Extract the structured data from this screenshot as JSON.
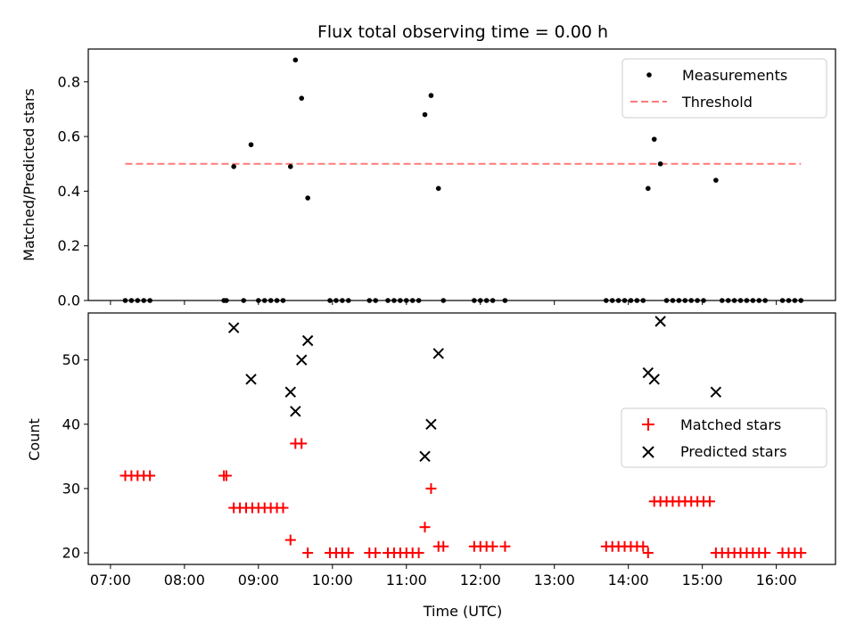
{
  "chart_data": [
    {
      "type": "scatter",
      "title": "Flux total observing time = 0.00 h",
      "ylabel": "Matched/Predicted stars",
      "ylim": [
        0,
        0.92
      ],
      "yticks": [
        0.0,
        0.2,
        0.4,
        0.6,
        0.8
      ],
      "ytick_labels": [
        "0.0",
        "0.2",
        "0.4",
        "0.6",
        "0.8"
      ],
      "grid": false,
      "legend_position": "top-right",
      "series": [
        {
          "name": "Measurements",
          "color": "#000000",
          "marker": "dot",
          "points": [
            [
              "07:12",
              0
            ],
            [
              "07:17",
              0
            ],
            [
              "07:22",
              0
            ],
            [
              "07:27",
              0
            ],
            [
              "07:32",
              0
            ],
            [
              "08:32",
              0
            ],
            [
              "08:34",
              0
            ],
            [
              "08:40",
              0.49
            ],
            [
              "08:48",
              0
            ],
            [
              "08:54",
              0.57
            ],
            [
              "09:00",
              0
            ],
            [
              "09:05",
              0
            ],
            [
              "09:10",
              0
            ],
            [
              "09:15",
              0
            ],
            [
              "09:20",
              0
            ],
            [
              "09:26",
              0.49
            ],
            [
              "09:30",
              0.88
            ],
            [
              "09:35",
              0.74
            ],
            [
              "09:40",
              0.375
            ],
            [
              "09:58",
              0
            ],
            [
              "10:03",
              0
            ],
            [
              "10:08",
              0
            ],
            [
              "10:13",
              0
            ],
            [
              "10:30",
              0
            ],
            [
              "10:35",
              0
            ],
            [
              "10:45",
              0
            ],
            [
              "10:50",
              0
            ],
            [
              "10:55",
              0
            ],
            [
              "11:00",
              0
            ],
            [
              "11:05",
              0
            ],
            [
              "11:10",
              0
            ],
            [
              "11:15",
              0.68
            ],
            [
              "11:20",
              0.75
            ],
            [
              "11:26",
              0.41
            ],
            [
              "11:30",
              0
            ],
            [
              "11:55",
              0
            ],
            [
              "12:00",
              0
            ],
            [
              "12:05",
              0
            ],
            [
              "12:10",
              0
            ],
            [
              "12:20",
              0
            ],
            [
              "13:42",
              0
            ],
            [
              "13:47",
              0
            ],
            [
              "13:52",
              0
            ],
            [
              "13:57",
              0
            ],
            [
              "14:02",
              0
            ],
            [
              "14:07",
              0
            ],
            [
              "14:12",
              0
            ],
            [
              "14:16",
              0.41
            ],
            [
              "14:21",
              0.59
            ],
            [
              "14:26",
              0.5
            ],
            [
              "14:31",
              0
            ],
            [
              "14:36",
              0
            ],
            [
              "14:41",
              0
            ],
            [
              "14:46",
              0
            ],
            [
              "14:51",
              0
            ],
            [
              "14:56",
              0
            ],
            [
              "15:01",
              0
            ],
            [
              "15:11",
              0.44
            ],
            [
              "15:16",
              0
            ],
            [
              "15:21",
              0
            ],
            [
              "15:26",
              0
            ],
            [
              "15:31",
              0
            ],
            [
              "15:36",
              0
            ],
            [
              "15:41",
              0
            ],
            [
              "15:46",
              0
            ],
            [
              "15:51",
              0
            ],
            [
              "16:05",
              0
            ],
            [
              "16:10",
              0
            ],
            [
              "16:15",
              0
            ],
            [
              "16:20",
              0
            ]
          ]
        },
        {
          "name": "Threshold",
          "color": "#ff7a7a",
          "style": "dashed",
          "points": [
            [
              "07:12",
              0.5
            ],
            [
              "16:20",
              0.5
            ]
          ]
        }
      ]
    },
    {
      "type": "scatter",
      "xlabel": "Time (UTC)",
      "ylabel": "Count",
      "xlim": [
        "06:42",
        "16:48"
      ],
      "ylim": [
        18.2,
        57.3
      ],
      "xticks": [
        "07:00",
        "08:00",
        "09:00",
        "10:00",
        "11:00",
        "12:00",
        "13:00",
        "14:00",
        "15:00",
        "16:00"
      ],
      "yticks": [
        20,
        30,
        40,
        50
      ],
      "ytick_labels": [
        "20",
        "30",
        "40",
        "50"
      ],
      "grid": false,
      "legend_position": "center-right",
      "series": [
        {
          "name": "Matched stars",
          "color": "#ff0000",
          "marker": "plus",
          "points": [
            [
              "07:12",
              32
            ],
            [
              "07:17",
              32
            ],
            [
              "07:22",
              32
            ],
            [
              "07:27",
              32
            ],
            [
              "07:32",
              32
            ],
            [
              "08:32",
              32
            ],
            [
              "08:34",
              32
            ],
            [
              "08:40",
              27
            ],
            [
              "08:45",
              27
            ],
            [
              "08:50",
              27
            ],
            [
              "08:55",
              27
            ],
            [
              "09:00",
              27
            ],
            [
              "09:05",
              27
            ],
            [
              "09:10",
              27
            ],
            [
              "09:15",
              27
            ],
            [
              "09:20",
              27
            ],
            [
              "09:26",
              22
            ],
            [
              "09:30",
              37
            ],
            [
              "09:35",
              37
            ],
            [
              "09:40",
              20
            ],
            [
              "09:58",
              20
            ],
            [
              "10:03",
              20
            ],
            [
              "10:08",
              20
            ],
            [
              "10:13",
              20
            ],
            [
              "10:30",
              20
            ],
            [
              "10:35",
              20
            ],
            [
              "10:45",
              20
            ],
            [
              "10:50",
              20
            ],
            [
              "10:55",
              20
            ],
            [
              "11:00",
              20
            ],
            [
              "11:05",
              20
            ],
            [
              "11:10",
              20
            ],
            [
              "11:15",
              24
            ],
            [
              "11:20",
              30
            ],
            [
              "11:26",
              21
            ],
            [
              "11:30",
              21
            ],
            [
              "11:55",
              21
            ],
            [
              "12:00",
              21
            ],
            [
              "12:05",
              21
            ],
            [
              "12:10",
              21
            ],
            [
              "12:20",
              21
            ],
            [
              "13:42",
              21
            ],
            [
              "13:47",
              21
            ],
            [
              "13:52",
              21
            ],
            [
              "13:57",
              21
            ],
            [
              "14:02",
              21
            ],
            [
              "14:07",
              21
            ],
            [
              "14:12",
              21
            ],
            [
              "14:16",
              20
            ],
            [
              "14:21",
              28
            ],
            [
              "14:26",
              28
            ],
            [
              "14:31",
              28
            ],
            [
              "14:36",
              28
            ],
            [
              "14:41",
              28
            ],
            [
              "14:46",
              28
            ],
            [
              "14:51",
              28
            ],
            [
              "14:56",
              28
            ],
            [
              "15:01",
              28
            ],
            [
              "15:06",
              28
            ],
            [
              "15:11",
              20
            ],
            [
              "15:16",
              20
            ],
            [
              "15:21",
              20
            ],
            [
              "15:26",
              20
            ],
            [
              "15:31",
              20
            ],
            [
              "15:36",
              20
            ],
            [
              "15:41",
              20
            ],
            [
              "15:46",
              20
            ],
            [
              "15:51",
              20
            ],
            [
              "16:05",
              20
            ],
            [
              "16:10",
              20
            ],
            [
              "16:15",
              20
            ],
            [
              "16:20",
              20
            ]
          ]
        },
        {
          "name": "Predicted stars",
          "color": "#000000",
          "marker": "x",
          "points": [
            [
              "08:40",
              55
            ],
            [
              "08:54",
              47
            ],
            [
              "09:26",
              45
            ],
            [
              "09:30",
              42
            ],
            [
              "09:35",
              50
            ],
            [
              "09:40",
              53
            ],
            [
              "11:15",
              35
            ],
            [
              "11:20",
              40
            ],
            [
              "11:26",
              51
            ],
            [
              "14:16",
              48
            ],
            [
              "14:21",
              47
            ],
            [
              "14:26",
              56
            ],
            [
              "15:11",
              45
            ]
          ]
        }
      ]
    }
  ]
}
